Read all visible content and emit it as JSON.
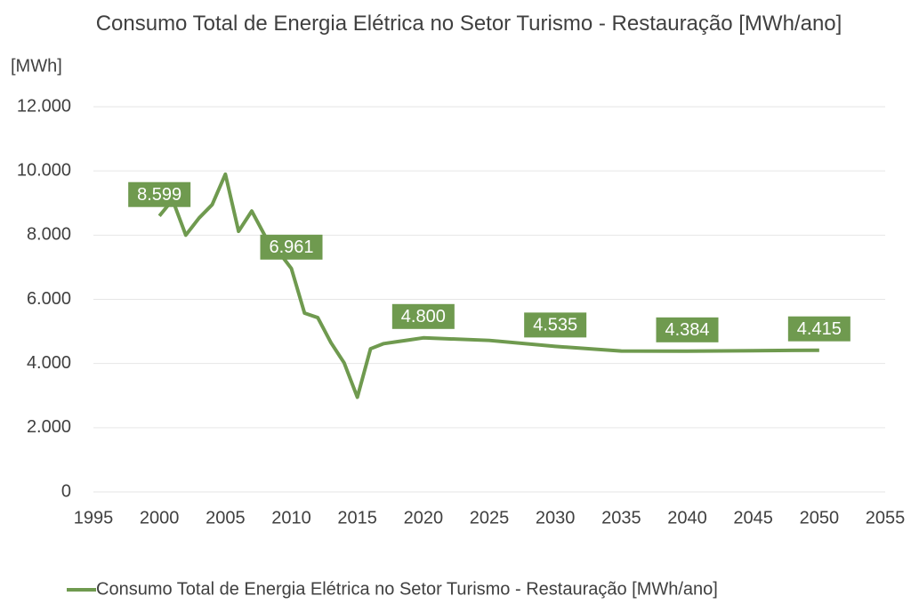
{
  "chart_data": {
    "type": "line",
    "title": "Consumo Total de Energia Elétrica no Setor Turismo - Restauração [MWh/ano]",
    "y_label": "[MWh]",
    "x": [
      2000,
      2001,
      2002,
      2003,
      2004,
      2005,
      2006,
      2007,
      2008,
      2009,
      2010,
      2011,
      2012,
      2013,
      2014,
      2015,
      2016,
      2017,
      2018,
      2019,
      2020,
      2025,
      2030,
      2035,
      2040,
      2045,
      2050
    ],
    "series": [
      {
        "name": "Consumo Total de Energia Elétrica no Setor Turismo - Restauração [MWh/ano]",
        "color": "#6f9a4f",
        "values": [
          8599,
          9100,
          8000,
          8530,
          8950,
          9900,
          8120,
          8750,
          7980,
          7500,
          6961,
          5570,
          5430,
          4650,
          4020,
          2950,
          4460,
          4620,
          4680,
          4740,
          4800,
          4720,
          4535,
          4390,
          4384,
          4400,
          4415
        ],
        "value_labels": [
          "8.599",
          null,
          null,
          null,
          null,
          null,
          null,
          null,
          null,
          null,
          "6.961",
          null,
          null,
          null,
          null,
          null,
          null,
          null,
          null,
          null,
          "4.800",
          null,
          "4.535",
          null,
          "4.384",
          null,
          "4.415"
        ]
      }
    ],
    "xlim": [
      1995,
      2055
    ],
    "xticks": [
      1995,
      2000,
      2005,
      2010,
      2015,
      2020,
      2025,
      2030,
      2035,
      2040,
      2045,
      2050,
      2055
    ],
    "ylim": [
      0,
      12000
    ],
    "yticks": [
      0,
      {
        "value": 2000,
        "label": "2.000"
      },
      {
        "value": 4000,
        "label": "4.000"
      },
      {
        "value": 6000,
        "label": "6.000"
      },
      {
        "value": 8000,
        "label": "8.000"
      },
      {
        "value": 10000,
        "label": "10.000"
      },
      {
        "value": 12000,
        "label": "12.000"
      }
    ],
    "grid": true,
    "legend": "bottom"
  }
}
